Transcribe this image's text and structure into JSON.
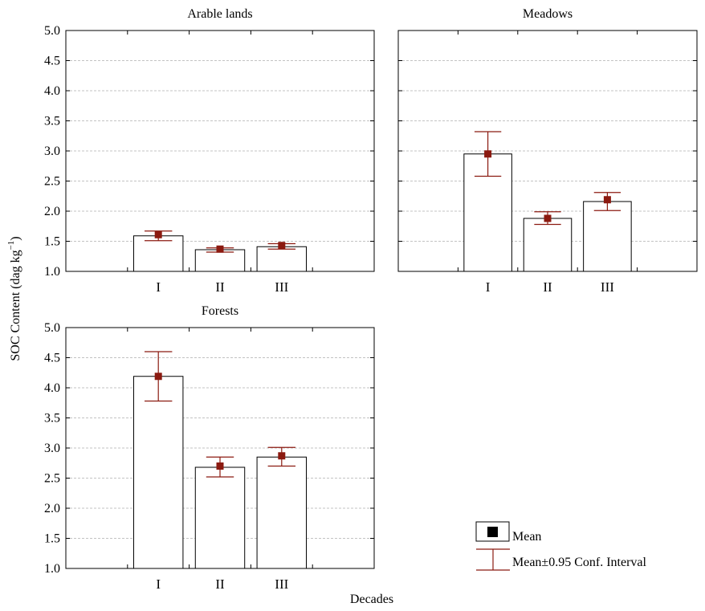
{
  "y_axis_label": "SOC Content (dag kg",
  "y_axis_label_sup": "−1",
  "y_axis_label_end": ")",
  "x_axis_label": "Decades",
  "legend": {
    "mean_label": "Mean",
    "ci_label": "Mean±0.95 Conf. Interval"
  },
  "colors": {
    "bar_fill": "#ffffff",
    "bar_stroke": "#000000",
    "marker": "#8b1a10",
    "error_bar": "#8b1a10",
    "grid": "#b0b0b0"
  },
  "chart_data": [
    {
      "type": "bar",
      "title": "Arable lands",
      "categories": [
        "I",
        "II",
        "III"
      ],
      "values": [
        1.59,
        1.36,
        1.41
      ],
      "mean_markers": [
        1.61,
        1.37,
        1.43
      ],
      "ci_low": [
        1.51,
        1.32,
        1.37
      ],
      "ci_high": [
        1.67,
        1.39,
        1.46
      ],
      "ylim": [
        1.0,
        5.0
      ],
      "yticks": [
        "1.0",
        "1.5",
        "2.0",
        "2.5",
        "3.0",
        "3.5",
        "4.0",
        "4.5",
        "5.0"
      ],
      "show_y_tick_labels": true,
      "grid": true
    },
    {
      "type": "bar",
      "title": "Meadows",
      "categories": [
        "I",
        "II",
        "III"
      ],
      "values": [
        2.95,
        1.88,
        2.16
      ],
      "mean_markers": [
        2.95,
        1.88,
        2.19
      ],
      "ci_low": [
        2.58,
        1.78,
        2.01
      ],
      "ci_high": [
        3.32,
        1.99,
        2.31
      ],
      "ylim": [
        1.0,
        5.0
      ],
      "yticks": [
        "1.0",
        "1.5",
        "2.0",
        "2.5",
        "3.0",
        "3.5",
        "4.0",
        "4.5",
        "5.0"
      ],
      "show_y_tick_labels": false,
      "grid": true
    },
    {
      "type": "bar",
      "title": "Forests",
      "categories": [
        "I",
        "II",
        "III"
      ],
      "values": [
        4.19,
        2.68,
        2.85
      ],
      "mean_markers": [
        4.19,
        2.7,
        2.87
      ],
      "ci_low": [
        3.78,
        2.52,
        2.7
      ],
      "ci_high": [
        4.6,
        2.85,
        3.01
      ],
      "ylim": [
        1.0,
        5.0
      ],
      "yticks": [
        "1.0",
        "1.5",
        "2.0",
        "2.5",
        "3.0",
        "3.5",
        "4.0",
        "4.5",
        "5.0"
      ],
      "show_y_tick_labels": true,
      "grid": true
    }
  ]
}
